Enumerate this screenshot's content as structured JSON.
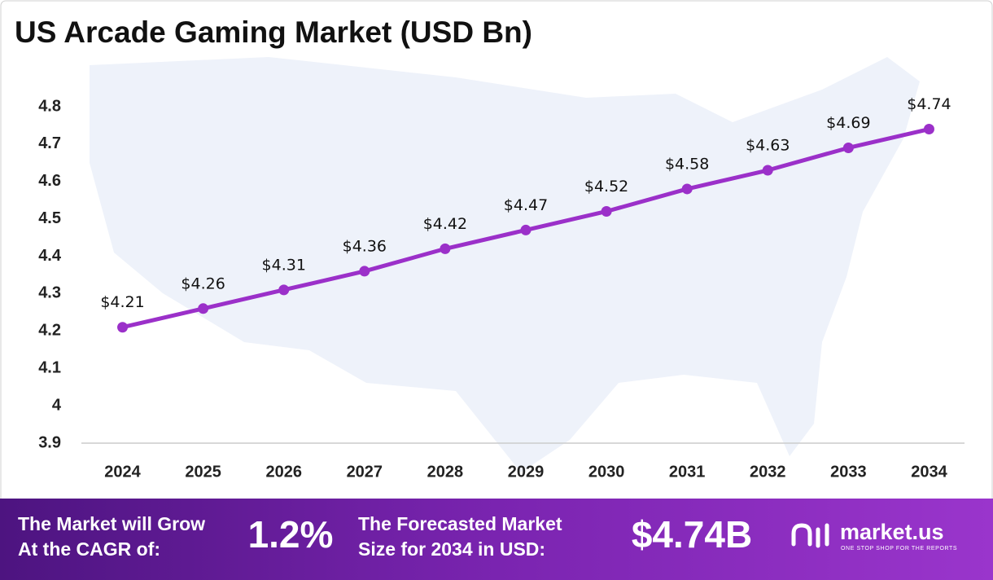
{
  "chart_data": {
    "type": "line",
    "title": "US Arcade Gaming Market (USD Bn)",
    "categories": [
      "2024",
      "2025",
      "2026",
      "2027",
      "2028",
      "2029",
      "2030",
      "2031",
      "2032",
      "2033",
      "2034"
    ],
    "series": [
      {
        "color": "#9b30c9",
        "values": [
          4.21,
          4.26,
          4.31,
          4.36,
          4.42,
          4.47,
          4.52,
          4.58,
          4.63,
          4.69,
          4.74
        ],
        "value_labels": [
          "$4.21",
          "$4.26",
          "$4.31",
          "$4.36",
          "$4.42",
          "$4.47",
          "$4.52",
          "$4.58",
          "$4.63",
          "$4.69",
          "$4.74"
        ]
      }
    ],
    "ylim": [
      3.9,
      4.8
    ],
    "yticks": [
      3.9,
      4,
      4.1,
      4.2,
      4.3,
      4.4,
      4.5,
      4.6,
      4.7,
      4.8
    ],
    "grid": false
  },
  "banner": {
    "cagr_text": [
      "The Market will Grow",
      "At the CAGR of:"
    ],
    "cagr_value": "1.2%",
    "forecast_text": [
      "The Forecasted Market",
      "Size for 2034 in USD:"
    ],
    "forecast_value": "$4.74B",
    "logo": "market.us",
    "tagline": "ONE STOP SHOP FOR THE REPORTS"
  }
}
